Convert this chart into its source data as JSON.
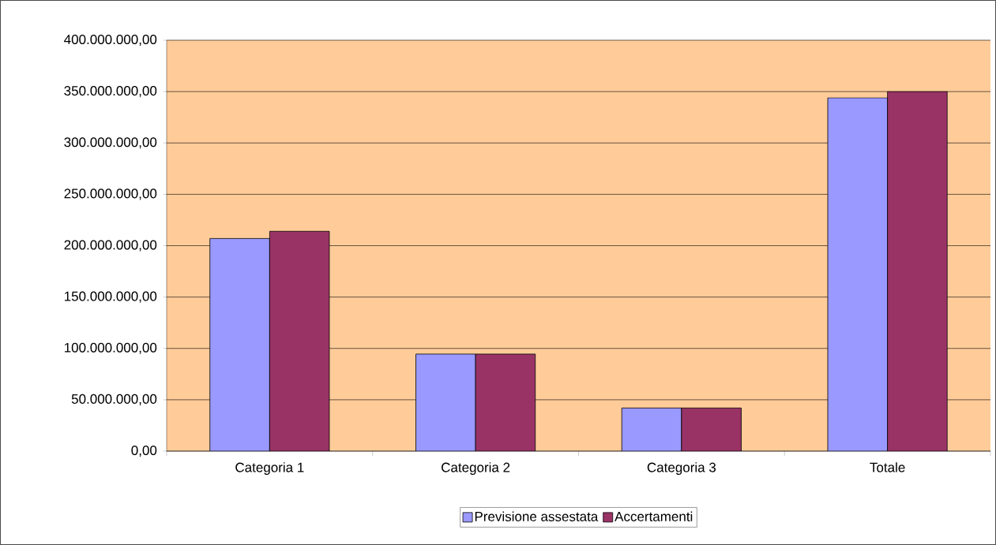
{
  "chart_data": {
    "type": "bar",
    "categories": [
      "Categoria 1",
      "Categoria 2",
      "Categoria 3",
      "Totale"
    ],
    "series": [
      {
        "name": "Previsione assestata",
        "color": "#9999ff",
        "values": [
          207000000,
          94500000,
          42000000,
          344000000
        ]
      },
      {
        "name": "Accertamenti",
        "color": "#993366",
        "values": [
          214000000,
          94500000,
          42000000,
          350000000
        ]
      }
    ],
    "ylim": [
      0,
      400000000
    ],
    "yticks": [
      {
        "value": 0,
        "label": "0,00"
      },
      {
        "value": 50000000,
        "label": "50.000.000,00"
      },
      {
        "value": 100000000,
        "label": "100.000.000,00"
      },
      {
        "value": 150000000,
        "label": "150.000.000,00"
      },
      {
        "value": 200000000,
        "label": "200.000.000,00"
      },
      {
        "value": 250000000,
        "label": "250.000.000,00"
      },
      {
        "value": 300000000,
        "label": "300.000.000,00"
      },
      {
        "value": 350000000,
        "label": "350.000.000,00"
      },
      {
        "value": 400000000,
        "label": "400.000.000,00"
      }
    ],
    "grid": "y",
    "legend": "bottom"
  }
}
